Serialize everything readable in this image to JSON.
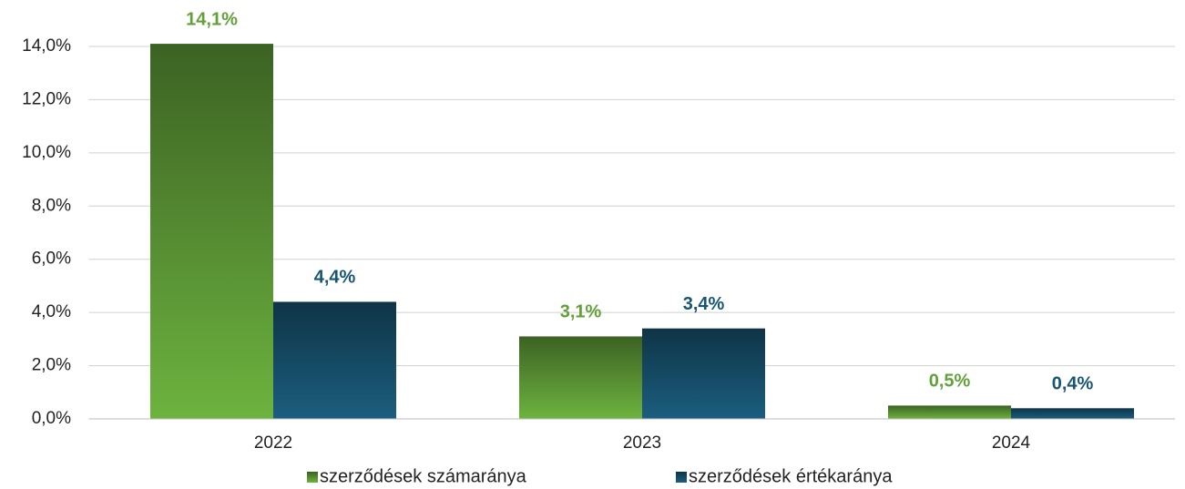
{
  "chart_data": {
    "type": "bar",
    "categories": [
      "2022",
      "2023",
      "2024"
    ],
    "series": [
      {
        "name": "szerződések számaránya",
        "color": "#6db33f",
        "values": [
          14.1,
          3.1,
          0.5
        ],
        "value_labels": [
          "14,1%",
          "3,1%",
          "0,5%"
        ]
      },
      {
        "name": "szerződések értékaránya",
        "color": "#1b5e7f",
        "values": [
          4.4,
          3.4,
          0.4
        ],
        "value_labels": [
          "4,4%",
          "3,4%",
          "0,4%"
        ]
      }
    ],
    "ylim": [
      0,
      14
    ],
    "yticks": [
      {
        "value": 0,
        "label": "0,0%"
      },
      {
        "value": 2,
        "label": "2,0%"
      },
      {
        "value": 4,
        "label": "4,0%"
      },
      {
        "value": 6,
        "label": "6,0%"
      },
      {
        "value": 8,
        "label": "8,0%"
      },
      {
        "value": 10,
        "label": "10,0%"
      },
      {
        "value": 12,
        "label": "12,0%"
      },
      {
        "value": 14,
        "label": "14,0%"
      }
    ],
    "grid": true,
    "legend": "bottom"
  }
}
